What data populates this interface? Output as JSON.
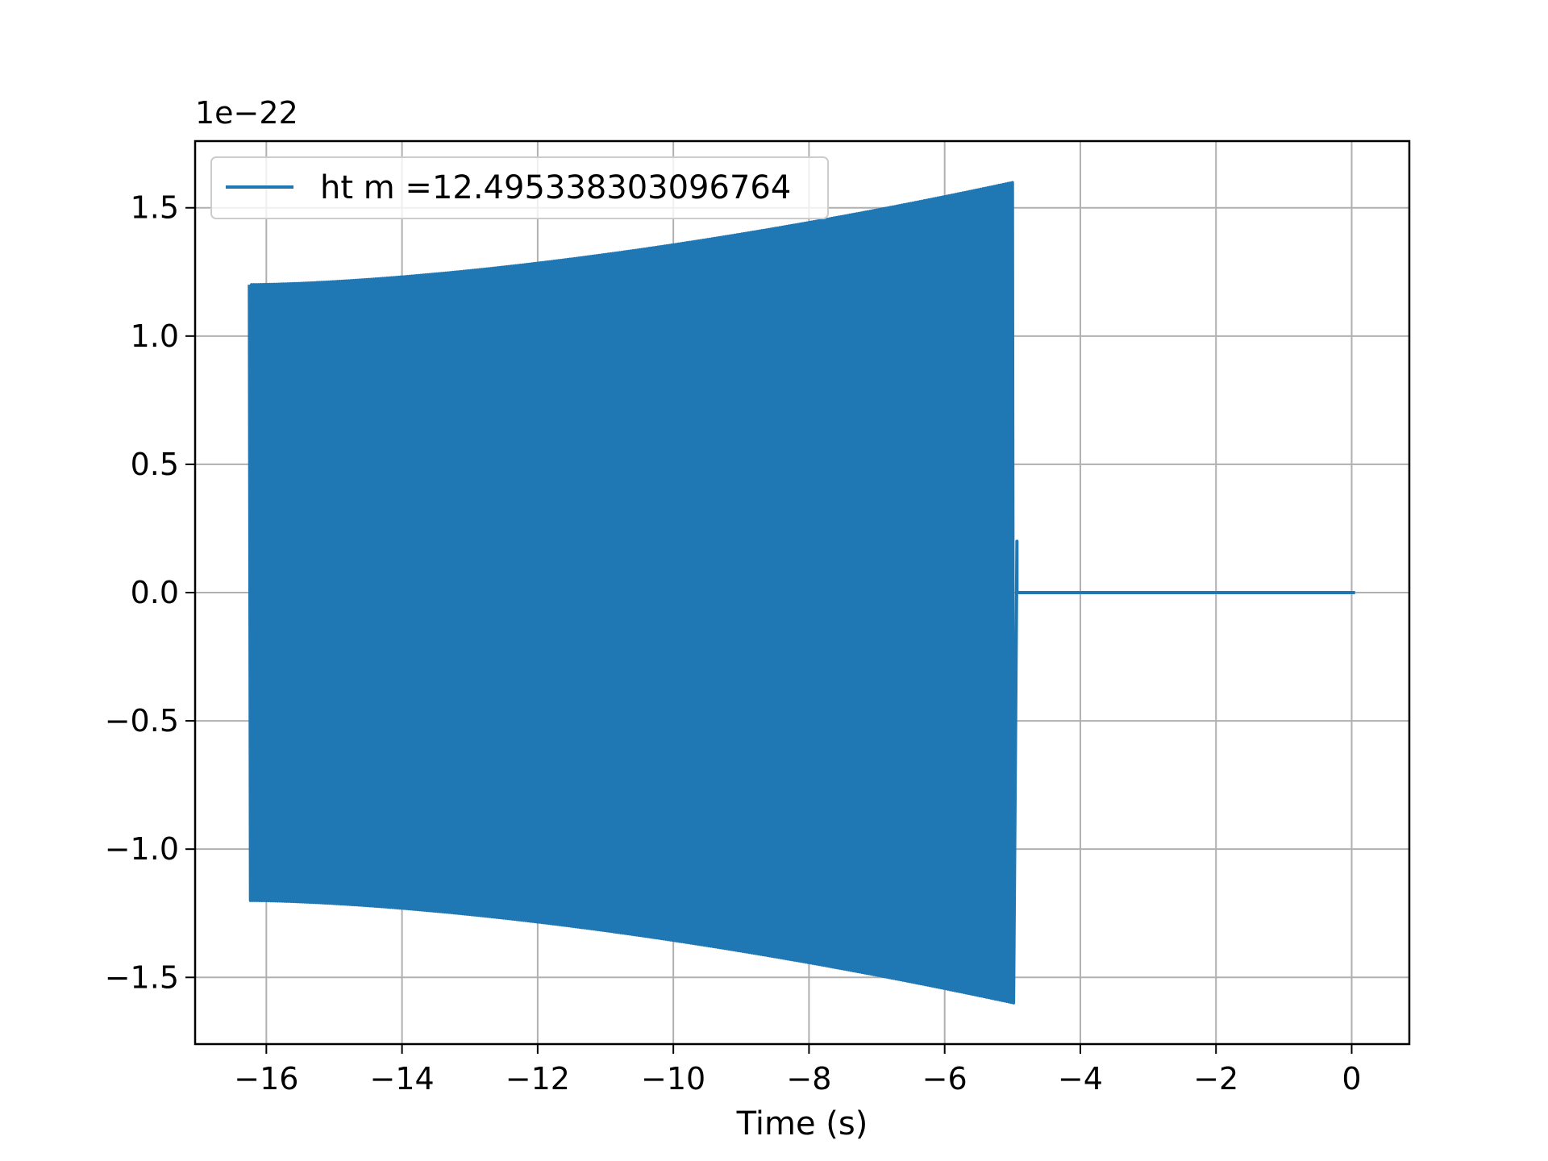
{
  "chart_data": {
    "type": "line",
    "title": "",
    "xlabel": "Time (s)",
    "ylabel": "",
    "y_scale_label": "1e−22",
    "xlim": [
      -17.05,
      0.85
    ],
    "ylim": [
      -1.76,
      1.76
    ],
    "x_ticks": [
      -16,
      -14,
      -12,
      -10,
      -8,
      -6,
      -4,
      -2,
      0
    ],
    "x_tick_labels": [
      "−16",
      "−14",
      "−12",
      "−10",
      "−8",
      "−6",
      "−4",
      "−2",
      "0"
    ],
    "y_ticks": [
      -1.5,
      -1.0,
      -0.5,
      0.0,
      0.5,
      1.0,
      1.5
    ],
    "y_tick_labels": [
      "−1.5",
      "−1.0",
      "−0.5",
      "0.0",
      "0.5",
      "1.0",
      "1.5"
    ],
    "grid": true,
    "legend_position": "top-left",
    "series": [
      {
        "name": "ht m =12.495338303096764",
        "color": "#1f77b4",
        "signal": {
          "start_time": -16.25,
          "end_time": -4.97,
          "amplitude_start": 1.2,
          "amplitude_end": 1.6,
          "flat_end_time": 0.05,
          "flat_value": 0.0
        }
      }
    ]
  }
}
